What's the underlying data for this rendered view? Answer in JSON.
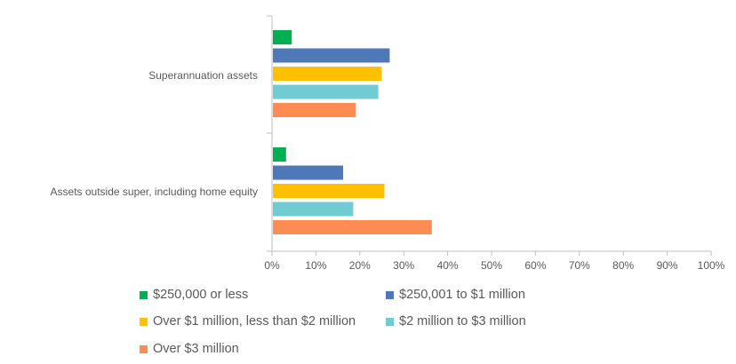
{
  "chart_data": {
    "type": "bar",
    "orientation": "horizontal",
    "categories": [
      "Superannuation assets",
      "Assets outside super, including home equity"
    ],
    "series": [
      {
        "name": "$250,000 or less",
        "color": "#00b050",
        "values": [
          4.5,
          3.2
        ]
      },
      {
        "name": "$250,001 to $1 million",
        "color": "#4f78b8",
        "values": [
          26.8,
          16.2
        ]
      },
      {
        "name": "Over $1 million, less than $2 million",
        "color": "#ffc000",
        "values": [
          25.0,
          25.6
        ]
      },
      {
        "name": "$2 million to $3 million",
        "color": "#70cbd2",
        "values": [
          24.2,
          18.5
        ]
      },
      {
        "name": "Over $3 million",
        "color": "#ff8c52",
        "values": [
          19.1,
          36.4
        ]
      }
    ],
    "x_ticks": [
      "0%",
      "10%",
      "20%",
      "30%",
      "40%",
      "50%",
      "60%",
      "70%",
      "80%",
      "90%",
      "100%"
    ],
    "xlim": [
      0,
      100
    ],
    "grid": false,
    "legend_position": "bottom"
  }
}
